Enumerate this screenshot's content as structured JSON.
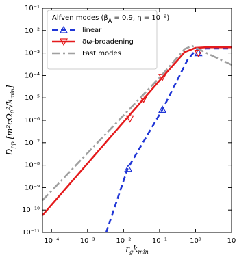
{
  "chart_data": {
    "type": "line",
    "x_label_parts": [
      "r",
      "g",
      "k",
      "min"
    ],
    "y_label_parts": [
      "D",
      "pp",
      " [m²cΩ",
      "0",
      "²/k",
      "min",
      "]"
    ],
    "legend_title_parts": [
      "Alfven modes (β",
      "A",
      " = 0.9, η = 10⁻²)"
    ],
    "xlog": true,
    "ylog": true,
    "xlim": [
      5.6e-05,
      10
    ],
    "ylim": [
      1e-11,
      0.1
    ],
    "xticks": [
      {
        "value": 0.0001,
        "label": "10⁻⁴"
      },
      {
        "value": 0.001,
        "label": "10⁻³"
      },
      {
        "value": 0.01,
        "label": "10⁻²"
      },
      {
        "value": 0.1,
        "label": "10⁻¹"
      },
      {
        "value": 1,
        "label": "10⁰"
      },
      {
        "value": 10,
        "label": "10"
      }
    ],
    "yticks": [
      {
        "value": 1e-11,
        "label": "10⁻¹¹"
      },
      {
        "value": 1e-10,
        "label": "10⁻¹⁰"
      },
      {
        "value": 1e-09,
        "label": "10⁻⁹"
      },
      {
        "value": 1e-08,
        "label": "10⁻⁸"
      },
      {
        "value": 1e-07,
        "label": "10⁻⁷"
      },
      {
        "value": 1e-06,
        "label": "10⁻⁶"
      },
      {
        "value": 1e-05,
        "label": "10⁻⁵"
      },
      {
        "value": 0.0001,
        "label": "10⁻⁴"
      },
      {
        "value": 0.001,
        "label": "10⁻³"
      },
      {
        "value": 0.01,
        "label": "10⁻²"
      },
      {
        "value": 0.1,
        "label": "10⁻¹"
      }
    ],
    "series": [
      {
        "name": "linear",
        "color": "#1f35d6",
        "dash": "8,5",
        "marker": "up",
        "x": [
          0.0033,
          0.013,
          0.12,
          0.6,
          1.0,
          2,
          10
        ],
        "values": [
          1e-11,
          7e-09,
          3e-06,
          0.0005,
          0.0013,
          0.0016,
          0.0016
        ],
        "marker_x": [
          0.0135,
          0.12,
          1.2
        ],
        "marker_values": [
          7e-09,
          3e-06,
          0.001
        ]
      },
      {
        "name": "δω-broadening",
        "color": "#e41a1c",
        "dash": "none",
        "marker": "down",
        "x": [
          5.6e-05,
          0.12,
          0.5,
          1.0,
          2,
          10
        ],
        "values": [
          5.8e-11,
          8.3e-05,
          0.0011,
          0.0017,
          0.0018,
          0.0018
        ],
        "marker_x": [
          0.015,
          0.036,
          0.12,
          1.2
        ],
        "marker_values": [
          1.2e-06,
          9e-06,
          8.5e-05,
          0.001
        ]
      },
      {
        "name": "Fast modes",
        "color": "#a0a0a0",
        "dash": "12,4,3,4",
        "marker": "none",
        "x": [
          5.6e-05,
          0.1,
          0.5,
          0.8,
          2,
          10
        ],
        "values": [
          2.7e-10,
          8e-05,
          0.0015,
          0.0021,
          0.001,
          0.0003
        ],
        "marker_x": [],
        "marker_values": []
      }
    ]
  }
}
